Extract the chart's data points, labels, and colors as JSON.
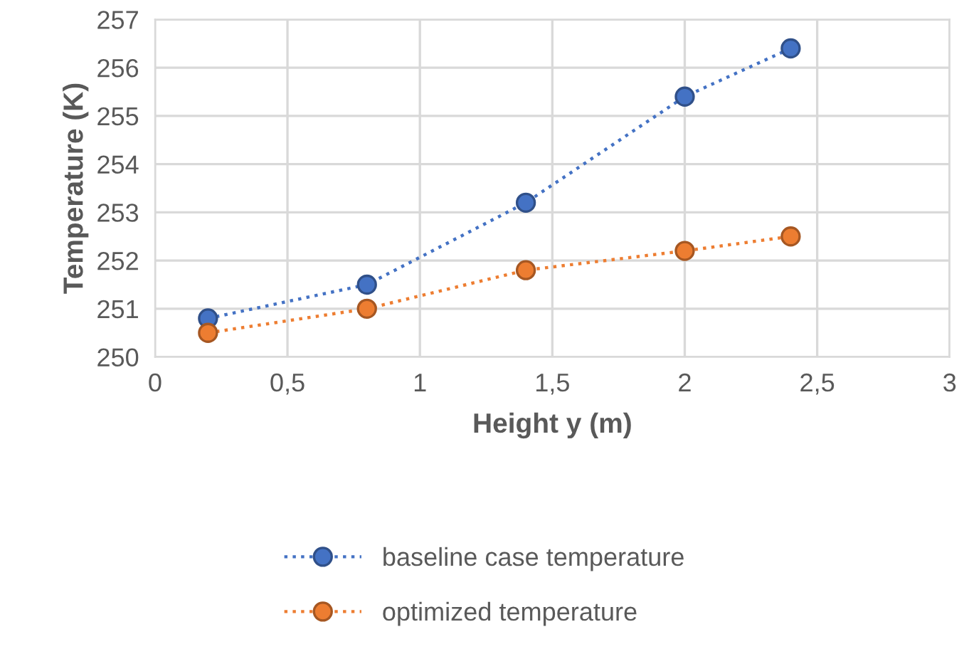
{
  "chart_data": {
    "type": "line",
    "xlabel": "Height y (m)",
    "ylabel": "Temperature (K)",
    "series": [
      {
        "name": "baseline case temperature",
        "color": "#4472c4",
        "x": [
          0.2,
          0.8,
          1.4,
          2.0,
          2.4
        ],
        "values": [
          250.8,
          251.5,
          253.2,
          255.4,
          256.4
        ]
      },
      {
        "name": "optimized temperature",
        "color": "#ed7d31",
        "x": [
          0.2,
          0.8,
          1.4,
          2.0,
          2.4
        ],
        "values": [
          250.5,
          251.0,
          251.8,
          252.2,
          252.5
        ]
      }
    ],
    "xlim": [
      0,
      3
    ],
    "xticks": [
      0,
      {
        "value": 0.5,
        "label": "0,5"
      },
      1,
      {
        "value": 1.5,
        "label": "1,5"
      },
      2,
      {
        "value": 2.5,
        "label": "2,5"
      },
      3
    ],
    "ylim": [
      250,
      257
    ],
    "yticks": [
      250,
      251,
      252,
      253,
      254,
      255,
      256,
      257
    ],
    "grid": true,
    "legend": "bottom",
    "marker": "circle",
    "line_style": "dotted"
  }
}
